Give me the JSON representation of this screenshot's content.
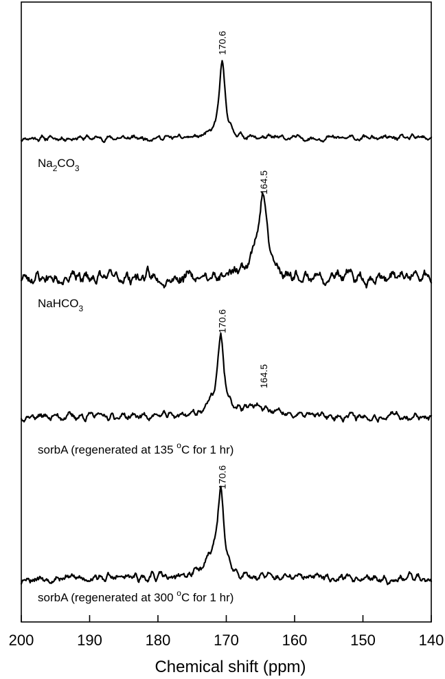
{
  "chart_data": {
    "type": "line",
    "xlabel": "Chemical shift (ppm)",
    "xlim": [
      200,
      140
    ],
    "x_reversed": true,
    "xticks": [
      200,
      190,
      180,
      170,
      160,
      150,
      140
    ],
    "y_axis_shown": false,
    "grid": false,
    "series": [
      {
        "name": "Na2CO3",
        "label_main": "Na",
        "label_sub1": "2",
        "label_mid": "CO",
        "label_sub2": "3",
        "baseline": 0,
        "peaks": [
          {
            "center": 170.6,
            "height": 1.0,
            "width": 0.55
          }
        ],
        "noise": 0.025,
        "seed": 11,
        "peak_labels": [
          {
            "x": 170.6,
            "text": "170.6"
          }
        ]
      },
      {
        "name": "NaHCO3",
        "label_main": "NaHCO",
        "label_sub1": "3",
        "baseline": 0,
        "peaks": [
          {
            "center": 164.6,
            "height": 1.0,
            "width": 0.7
          },
          {
            "center": 166.0,
            "height": 0.25,
            "width": 1.2
          }
        ],
        "noise": 0.06,
        "seed": 23,
        "peak_labels": [
          {
            "x": 164.5,
            "text": "164.5"
          }
        ]
      },
      {
        "name": "sorbA (regenerated at 135 °C for 1 hr)",
        "label_pre": "sorbA (regenerated at 135 ",
        "label_sup": "o",
        "label_post": "C for 1 hr)",
        "baseline": 0,
        "peaks": [
          {
            "center": 170.8,
            "height": 1.0,
            "width": 0.55
          },
          {
            "center": 172.0,
            "height": 0.1,
            "width": 1.5
          },
          {
            "center": 166.0,
            "height": 0.13,
            "width": 2.2
          }
        ],
        "noise": 0.035,
        "seed": 37,
        "peak_labels": [
          {
            "x": 170.6,
            "text": "170.6"
          },
          {
            "x": 164.5,
            "text": "164.5"
          }
        ]
      },
      {
        "name": "sorbA (regenerated at 300 °C for 1 hr)",
        "label_pre": "sorbA (regenerated at 300 ",
        "label_sup": "o",
        "label_post": "C for 1 hr)",
        "baseline": 0,
        "peaks": [
          {
            "center": 170.8,
            "height": 1.0,
            "width": 0.55
          },
          {
            "center": 172.2,
            "height": 0.22,
            "width": 1.4
          }
        ],
        "noise": 0.035,
        "seed": 53,
        "peak_labels": [
          {
            "x": 170.6,
            "text": "170.6"
          }
        ]
      }
    ]
  }
}
